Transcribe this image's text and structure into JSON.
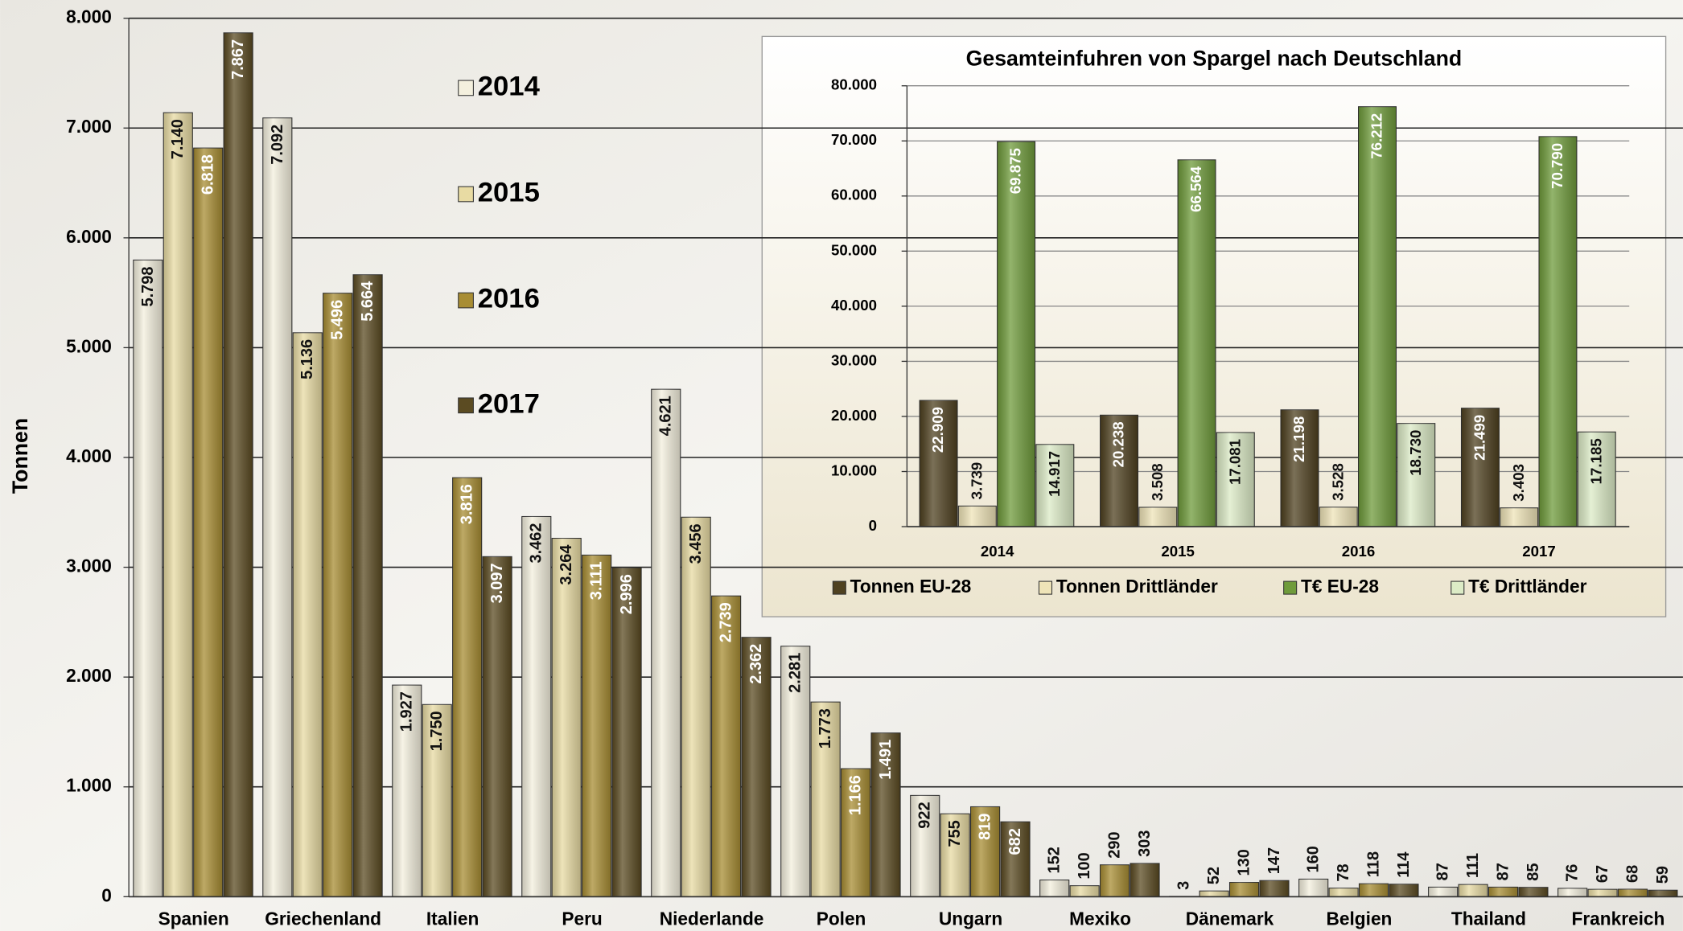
{
  "chart_data": [
    {
      "type": "bar",
      "y_label": "Tonnen",
      "categories": [
        "Spanien",
        "Griechenland",
        "Italien",
        "Peru",
        "Niederlande",
        "Polen",
        "Ungarn",
        "Mexiko",
        "Dänemark",
        "Belgien",
        "Thailand",
        "Frankreich"
      ],
      "series": [
        {
          "name": "2014",
          "color": "#f4f0de",
          "values": [
            5798,
            7092,
            1927,
            3462,
            4621,
            2281,
            922,
            152,
            3,
            160,
            87,
            76
          ],
          "value_labels": [
            "5.798",
            "7.092",
            "1.927",
            "3.462",
            "4.621",
            "2.281",
            "922",
            "152",
            "3",
            "160",
            "87",
            "76"
          ]
        },
        {
          "name": "2015",
          "color": "#e8dba3",
          "values": [
            7140,
            5136,
            1750,
            3264,
            3456,
            1773,
            755,
            100,
            52,
            78,
            111,
            67
          ],
          "value_labels": [
            "7.140",
            "5.136",
            "1.750",
            "3.264",
            "3.456",
            "1.773",
            "755",
            "100",
            "52",
            "78",
            "111",
            "67"
          ]
        },
        {
          "name": "2016",
          "color": "#a88d33",
          "values": [
            6818,
            5496,
            3816,
            3111,
            2739,
            1166,
            819,
            290,
            130,
            118,
            87,
            68
          ],
          "value_labels": [
            "6.818",
            "5.496",
            "3.816",
            "3.111",
            "2.739",
            "1.166",
            "819",
            "290",
            "130",
            "118",
            "87",
            "68"
          ]
        },
        {
          "name": "2017",
          "color": "#5b4b22",
          "values": [
            7867,
            5664,
            3097,
            2996,
            2362,
            1491,
            682,
            303,
            147,
            114,
            85,
            59
          ],
          "value_labels": [
            "7.867",
            "5.664",
            "3.097",
            "2.996",
            "2.362",
            "1.491",
            "682",
            "303",
            "147",
            "114",
            "85",
            "59"
          ]
        }
      ],
      "ylim": [
        0,
        8000
      ],
      "yticks": [
        0,
        {
          "value": 1000,
          "label": "1.000"
        },
        {
          "value": 2000,
          "label": "2.000"
        },
        {
          "value": 3000,
          "label": "3.000"
        },
        {
          "value": 4000,
          "label": "4.000"
        },
        {
          "value": 5000,
          "label": "5.000"
        },
        {
          "value": 6000,
          "label": "6.000"
        },
        {
          "value": 7000,
          "label": "7.000"
        },
        {
          "value": 8000,
          "label": "8.000"
        }
      ],
      "grid": true
    },
    {
      "type": "bar",
      "title": "Gesamteinfuhren von Spargel nach Deutschland",
      "categories": [
        "2014",
        "2015",
        "2016",
        "2017"
      ],
      "series": [
        {
          "name": "Tonnen EU-28",
          "color": "#4f4120",
          "values": [
            22909,
            20238,
            21198,
            21499
          ],
          "value_labels": [
            "22.909",
            "20.238",
            "21.198",
            "21.499"
          ]
        },
        {
          "name": "Tonnen Drittländer",
          "color": "#efe4b8",
          "values": [
            3739,
            3508,
            3528,
            3403
          ],
          "value_labels": [
            "3.739",
            "3.508",
            "3.528",
            "3.403"
          ]
        },
        {
          "name": "T€ EU-28",
          "color": "#6f9b3b",
          "values": [
            69875,
            66564,
            76212,
            70790
          ],
          "value_labels": [
            "69.875",
            "66.564",
            "76.212",
            "70.790"
          ]
        },
        {
          "name": "T€ Drittländer",
          "color": "#dcebc6",
          "values": [
            14917,
            17081,
            18730,
            17185
          ],
          "value_labels": [
            "14.917",
            "17.081",
            "18.730",
            "17.185"
          ]
        }
      ],
      "ylim": [
        0,
        80000
      ],
      "yticks": [
        0,
        {
          "value": 10000,
          "label": "10.000"
        },
        {
          "value": 20000,
          "label": "20.000"
        },
        {
          "value": 30000,
          "label": "30.000"
        },
        {
          "value": 40000,
          "label": "40.000"
        },
        {
          "value": 50000,
          "label": "50.000"
        },
        {
          "value": 60000,
          "label": "60.000"
        },
        {
          "value": 70000,
          "label": "70.000"
        },
        {
          "value": 80000,
          "label": "80.000"
        }
      ],
      "grid": true
    }
  ]
}
